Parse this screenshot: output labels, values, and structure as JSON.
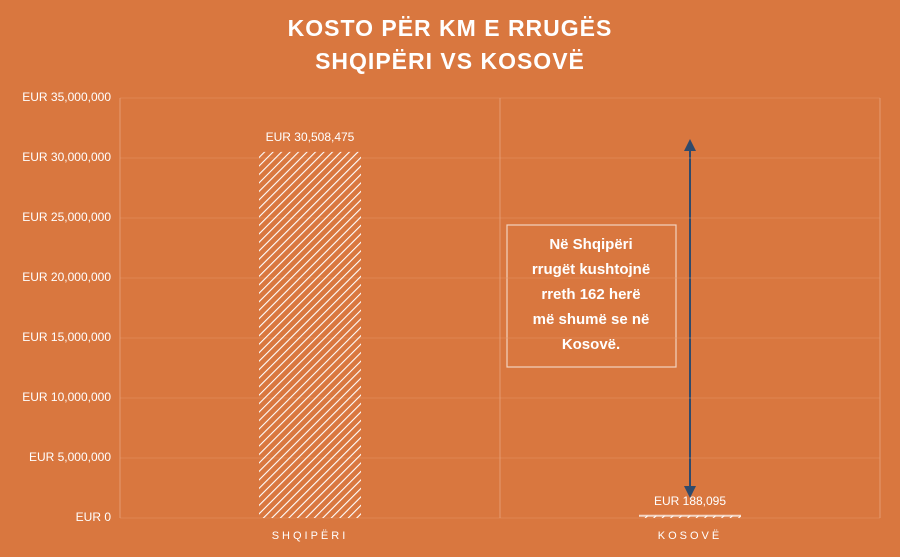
{
  "chart_data": {
    "type": "bar",
    "title": "KOSTO PËR KM E RRUGËS",
    "subtitle": "SHQIPËRI VS KOSOVË",
    "categories": [
      "SHQIPËRI",
      "KOSOVË"
    ],
    "values": [
      30508475,
      188095
    ],
    "value_labels": [
      "EUR 30,508,475",
      "EUR 188,095"
    ],
    "color": "#ffffff",
    "ylim": [
      0,
      35000000
    ],
    "yticks": [
      {
        "value": 0,
        "label": "EUR 0"
      },
      {
        "value": 5000000,
        "label": "EUR 5,000,000"
      },
      {
        "value": 10000000,
        "label": "EUR 10,000,000"
      },
      {
        "value": 15000000,
        "label": "EUR 15,000,000"
      },
      {
        "value": 20000000,
        "label": "EUR 20,000,000"
      },
      {
        "value": 25000000,
        "label": "EUR 25,000,000"
      },
      {
        "value": 30000000,
        "label": "EUR 30,000,000"
      },
      {
        "value": 35000000,
        "label": "EUR 35,000,000"
      }
    ],
    "annotation": [
      "Në Shqipëri",
      "rrugët kushtojnë",
      "rreth 162 herë",
      "më shumë se në",
      "Kosovë."
    ]
  }
}
